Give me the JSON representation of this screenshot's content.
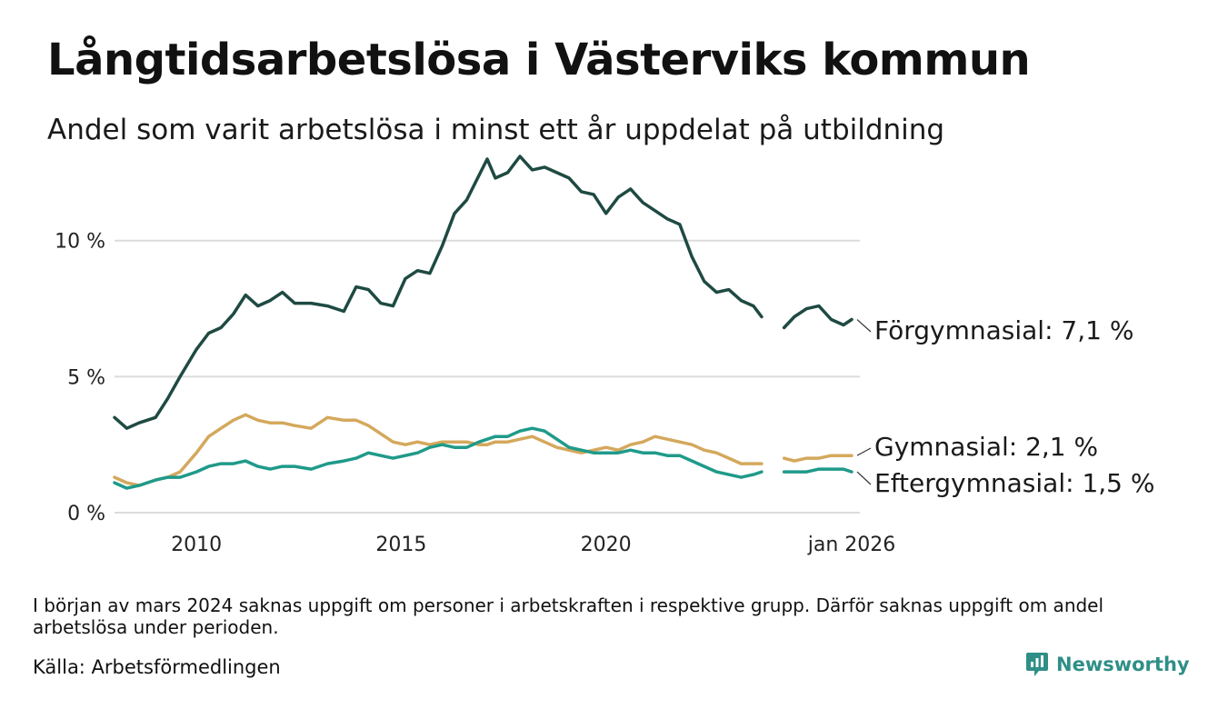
{
  "chart_data": {
    "type": "line",
    "title": "Långtidsarbetslösa i Västerviks kommun",
    "subtitle": "Andel som varit arbetslösa i minst ett år uppdelat på utbildning",
    "xlabel": "",
    "ylabel": "",
    "x_ticks": [
      {
        "value": 2010,
        "label": "2010"
      },
      {
        "value": 2015,
        "label": "2015"
      },
      {
        "value": 2020,
        "label": "2020"
      },
      {
        "value": 2026,
        "label": "jan 2026"
      }
    ],
    "y_ticks": [
      {
        "value": 0,
        "label": "0 %"
      },
      {
        "value": 5,
        "label": "5 %"
      },
      {
        "value": 10,
        "label": "10 %"
      }
    ],
    "xlim": [
      2008.0,
      2026.2
    ],
    "ylim": [
      0,
      13.5
    ],
    "grid": true,
    "gap": [
      2023.8,
      2024.35
    ],
    "series": [
      {
        "name": "Förgymnasial",
        "label": "Förgymnasial: 7,1 %",
        "color": "#1e4a42",
        "x": [
          2008.0,
          2008.3,
          2008.6,
          2009.0,
          2009.3,
          2009.6,
          2010.0,
          2010.3,
          2010.6,
          2010.9,
          2011.2,
          2011.5,
          2011.8,
          2012.1,
          2012.4,
          2012.8,
          2013.2,
          2013.6,
          2013.9,
          2014.2,
          2014.5,
          2014.8,
          2015.1,
          2015.4,
          2015.7,
          2016.0,
          2016.3,
          2016.6,
          2016.9,
          2017.1,
          2017.3,
          2017.6,
          2017.9,
          2018.2,
          2018.5,
          2018.8,
          2019.1,
          2019.4,
          2019.7,
          2020.0,
          2020.3,
          2020.6,
          2020.9,
          2021.2,
          2021.5,
          2021.8,
          2022.1,
          2022.4,
          2022.7,
          2023.0,
          2023.3,
          2023.6,
          2023.8,
          2024.35,
          2024.6,
          2024.9,
          2025.2,
          2025.5,
          2025.8,
          2026.0
        ],
        "values": [
          3.5,
          3.1,
          3.3,
          3.5,
          4.2,
          5.0,
          6.0,
          6.6,
          6.8,
          7.3,
          8.0,
          7.6,
          7.8,
          8.1,
          7.7,
          7.7,
          7.6,
          7.4,
          8.3,
          8.2,
          7.7,
          7.6,
          8.6,
          8.9,
          8.8,
          9.8,
          11.0,
          11.5,
          12.4,
          13.0,
          12.3,
          12.5,
          13.1,
          12.6,
          12.7,
          12.5,
          12.3,
          11.8,
          11.7,
          11.0,
          11.6,
          11.9,
          11.4,
          11.1,
          10.8,
          10.6,
          9.4,
          8.5,
          8.1,
          8.2,
          7.8,
          7.6,
          7.2,
          6.8,
          7.2,
          7.5,
          7.6,
          7.1,
          6.9,
          7.1
        ]
      },
      {
        "name": "Gymnasial",
        "label": "Gymnasial: 2,1 %",
        "color": "#d4a85c",
        "x": [
          2008.0,
          2008.3,
          2008.6,
          2009.0,
          2009.3,
          2009.6,
          2010.0,
          2010.3,
          2010.6,
          2010.9,
          2011.2,
          2011.5,
          2011.8,
          2012.1,
          2012.4,
          2012.8,
          2013.2,
          2013.6,
          2013.9,
          2014.2,
          2014.5,
          2014.8,
          2015.1,
          2015.4,
          2015.7,
          2016.0,
          2016.3,
          2016.6,
          2016.9,
          2017.1,
          2017.3,
          2017.6,
          2017.9,
          2018.2,
          2018.5,
          2018.8,
          2019.1,
          2019.4,
          2019.7,
          2020.0,
          2020.3,
          2020.6,
          2020.9,
          2021.2,
          2021.5,
          2021.8,
          2022.1,
          2022.4,
          2022.7,
          2023.0,
          2023.3,
          2023.6,
          2023.8,
          2024.35,
          2024.6,
          2024.9,
          2025.2,
          2025.5,
          2025.8,
          2026.0
        ],
        "values": [
          1.3,
          1.1,
          1.0,
          1.2,
          1.3,
          1.5,
          2.2,
          2.8,
          3.1,
          3.4,
          3.6,
          3.4,
          3.3,
          3.3,
          3.2,
          3.1,
          3.5,
          3.4,
          3.4,
          3.2,
          2.9,
          2.6,
          2.5,
          2.6,
          2.5,
          2.6,
          2.6,
          2.6,
          2.5,
          2.5,
          2.6,
          2.6,
          2.7,
          2.8,
          2.6,
          2.4,
          2.3,
          2.2,
          2.3,
          2.4,
          2.3,
          2.5,
          2.6,
          2.8,
          2.7,
          2.6,
          2.5,
          2.3,
          2.2,
          2.0,
          1.8,
          1.8,
          1.8,
          2.0,
          1.9,
          2.0,
          2.0,
          2.1,
          2.1,
          2.1
        ]
      },
      {
        "name": "Eftergymnasial",
        "label": "Eftergymnasial: 1,5 %",
        "color": "#1f9a8a",
        "x": [
          2008.0,
          2008.3,
          2008.6,
          2009.0,
          2009.3,
          2009.6,
          2010.0,
          2010.3,
          2010.6,
          2010.9,
          2011.2,
          2011.5,
          2011.8,
          2012.1,
          2012.4,
          2012.8,
          2013.2,
          2013.6,
          2013.9,
          2014.2,
          2014.5,
          2014.8,
          2015.1,
          2015.4,
          2015.7,
          2016.0,
          2016.3,
          2016.6,
          2016.9,
          2017.1,
          2017.3,
          2017.6,
          2017.9,
          2018.2,
          2018.5,
          2018.8,
          2019.1,
          2019.4,
          2019.7,
          2020.0,
          2020.3,
          2020.6,
          2020.9,
          2021.2,
          2021.5,
          2021.8,
          2022.1,
          2022.4,
          2022.7,
          2023.0,
          2023.3,
          2023.6,
          2023.8,
          2024.35,
          2024.6,
          2024.9,
          2025.2,
          2025.5,
          2025.8,
          2026.0
        ],
        "values": [
          1.1,
          0.9,
          1.0,
          1.2,
          1.3,
          1.3,
          1.5,
          1.7,
          1.8,
          1.8,
          1.9,
          1.7,
          1.6,
          1.7,
          1.7,
          1.6,
          1.8,
          1.9,
          2.0,
          2.2,
          2.1,
          2.0,
          2.1,
          2.2,
          2.4,
          2.5,
          2.4,
          2.4,
          2.6,
          2.7,
          2.8,
          2.8,
          3.0,
          3.1,
          3.0,
          2.7,
          2.4,
          2.3,
          2.2,
          2.2,
          2.2,
          2.3,
          2.2,
          2.2,
          2.1,
          2.1,
          1.9,
          1.7,
          1.5,
          1.4,
          1.3,
          1.4,
          1.5,
          1.5,
          1.5,
          1.5,
          1.6,
          1.6,
          1.6,
          1.5
        ]
      }
    ]
  },
  "footnote": "I början av mars 2024 saknas uppgift om personer i arbetskraften i respektive grupp. Därför saknas uppgift om andel arbetslösa under perioden.",
  "source": "Källa: Arbetsförmedlingen",
  "brand": {
    "name": "Newsworthy",
    "icon": "newsworthy-logo-icon",
    "color": "#2f8f87"
  }
}
